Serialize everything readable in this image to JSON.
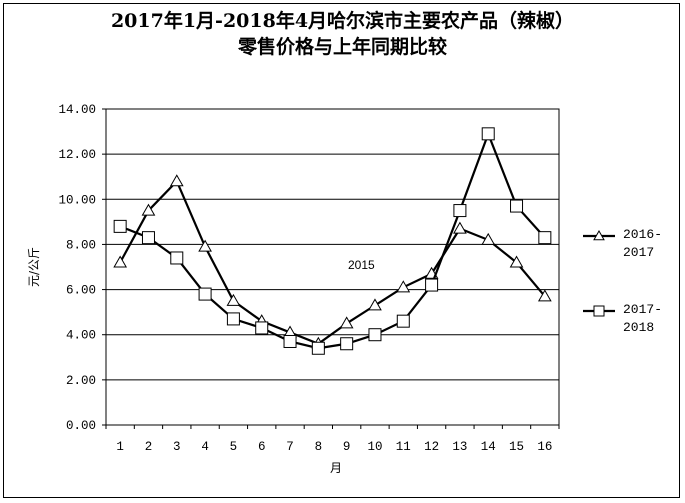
{
  "chart_data": {
    "type": "line",
    "title_line1": "2017年1月-2018年4月哈尔滨市主要农产品（辣椒）",
    "title_line2": "零售价格与上年同期比较",
    "xlabel": "月",
    "ylabel": "元/公斤",
    "categories": [
      "1",
      "2",
      "3",
      "4",
      "5",
      "6",
      "7",
      "8",
      "9",
      "10",
      "11",
      "12",
      "13",
      "14",
      "15",
      "16"
    ],
    "ylim": [
      0,
      14
    ],
    "ytick_labels": [
      "0.00",
      "2.00",
      "4.00",
      "6.00",
      "8.00",
      "10.00",
      "12.00",
      "14.00"
    ],
    "grid": "horizontal",
    "legend_position": "right",
    "annotation": "2015",
    "series": [
      {
        "name_line1": "2016-",
        "name_line2": "2017",
        "marker": "triangle",
        "color": "#000000",
        "values": [
          7.2,
          9.5,
          10.8,
          7.9,
          5.5,
          4.6,
          4.1,
          3.6,
          4.5,
          5.3,
          6.1,
          6.7,
          8.7,
          8.2,
          7.2,
          5.7
        ]
      },
      {
        "name_line1": "2017-",
        "name_line2": "2018",
        "marker": "square",
        "color": "#000000",
        "values": [
          8.8,
          8.3,
          7.4,
          5.8,
          4.7,
          4.3,
          3.7,
          3.4,
          3.6,
          4.0,
          4.6,
          6.2,
          9.5,
          12.9,
          9.7,
          8.3
        ]
      }
    ]
  }
}
